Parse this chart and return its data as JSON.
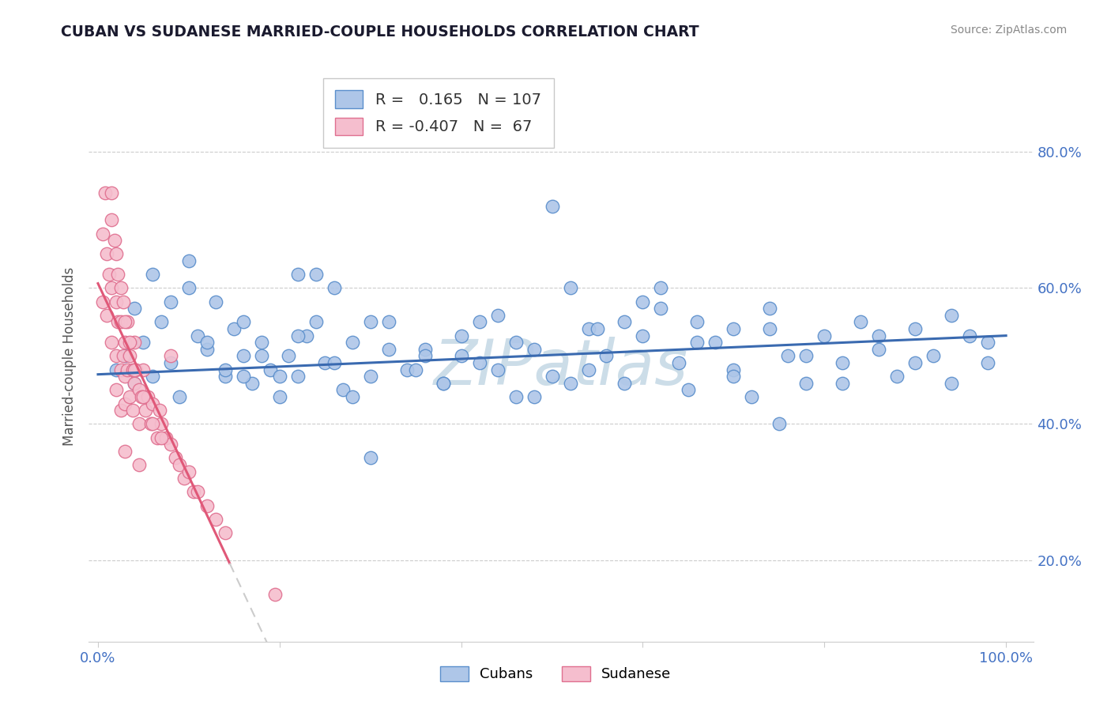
{
  "title": "CUBAN VS SUDANESE MARRIED-COUPLE HOUSEHOLDS CORRELATION CHART",
  "source": "Source: ZipAtlas.com",
  "ylabel_label": "Married-couple Households",
  "x_tick_positions": [
    0.0,
    0.2,
    0.4,
    0.6,
    0.8,
    1.0
  ],
  "x_tick_labels": [
    "0.0%",
    "",
    "",
    "",
    "",
    "100.0%"
  ],
  "y_tick_positions": [
    0.2,
    0.4,
    0.6,
    0.8
  ],
  "y_tick_labels": [
    "20.0%",
    "40.0%",
    "60.0%",
    "80.0%"
  ],
  "xlim": [
    -0.01,
    1.03
  ],
  "ylim": [
    0.08,
    0.92
  ],
  "r_cuban": 0.165,
  "n_cuban": 107,
  "r_sudanese": -0.407,
  "n_sudanese": 67,
  "cuban_color": "#aec6e8",
  "cuban_edge_color": "#5b8fcc",
  "cuban_line_color": "#3a6ab0",
  "sudanese_color": "#f5bece",
  "sudanese_edge_color": "#e07090",
  "sudanese_line_color": "#e05878",
  "sudanese_line_dash_color": "#cccccc",
  "watermark_color": "#ccdde8",
  "background_color": "#ffffff",
  "cuban_scatter_x": [
    0.02,
    0.03,
    0.04,
    0.05,
    0.06,
    0.07,
    0.08,
    0.09,
    0.1,
    0.11,
    0.12,
    0.13,
    0.14,
    0.15,
    0.16,
    0.17,
    0.18,
    0.19,
    0.2,
    0.21,
    0.22,
    0.23,
    0.24,
    0.25,
    0.26,
    0.27,
    0.28,
    0.3,
    0.32,
    0.34,
    0.36,
    0.38,
    0.4,
    0.42,
    0.44,
    0.46,
    0.48,
    0.5,
    0.52,
    0.54,
    0.56,
    0.58,
    0.6,
    0.62,
    0.64,
    0.66,
    0.68,
    0.7,
    0.72,
    0.74,
    0.76,
    0.78,
    0.8,
    0.82,
    0.84,
    0.86,
    0.88,
    0.9,
    0.92,
    0.94,
    0.96,
    0.98,
    0.04,
    0.06,
    0.08,
    0.1,
    0.12,
    0.14,
    0.16,
    0.18,
    0.2,
    0.22,
    0.24,
    0.26,
    0.28,
    0.3,
    0.32,
    0.35,
    0.38,
    0.42,
    0.46,
    0.5,
    0.54,
    0.58,
    0.62,
    0.66,
    0.7,
    0.74,
    0.78,
    0.82,
    0.86,
    0.9,
    0.94,
    0.98,
    0.44,
    0.55,
    0.65,
    0.75,
    0.48,
    0.36,
    0.6,
    0.3,
    0.22,
    0.16,
    0.7,
    0.4,
    0.52
  ],
  "cuban_scatter_y": [
    0.48,
    0.5,
    0.46,
    0.52,
    0.47,
    0.55,
    0.49,
    0.44,
    0.6,
    0.53,
    0.51,
    0.58,
    0.47,
    0.54,
    0.5,
    0.46,
    0.52,
    0.48,
    0.44,
    0.5,
    0.47,
    0.53,
    0.55,
    0.49,
    0.6,
    0.45,
    0.52,
    0.47,
    0.55,
    0.48,
    0.51,
    0.46,
    0.53,
    0.49,
    0.56,
    0.44,
    0.51,
    0.47,
    0.6,
    0.54,
    0.5,
    0.46,
    0.53,
    0.57,
    0.49,
    0.55,
    0.52,
    0.48,
    0.44,
    0.57,
    0.5,
    0.46,
    0.53,
    0.49,
    0.55,
    0.51,
    0.47,
    0.54,
    0.5,
    0.46,
    0.53,
    0.49,
    0.57,
    0.62,
    0.58,
    0.64,
    0.52,
    0.48,
    0.55,
    0.5,
    0.47,
    0.53,
    0.62,
    0.49,
    0.44,
    0.55,
    0.51,
    0.48,
    0.46,
    0.55,
    0.52,
    0.72,
    0.48,
    0.55,
    0.6,
    0.52,
    0.47,
    0.54,
    0.5,
    0.46,
    0.53,
    0.49,
    0.56,
    0.52,
    0.48,
    0.54,
    0.45,
    0.4,
    0.44,
    0.5,
    0.58,
    0.35,
    0.62,
    0.47,
    0.54,
    0.5,
    0.46
  ],
  "sudanese_scatter_x": [
    0.005,
    0.005,
    0.008,
    0.01,
    0.01,
    0.012,
    0.015,
    0.015,
    0.015,
    0.018,
    0.02,
    0.02,
    0.02,
    0.022,
    0.022,
    0.025,
    0.025,
    0.025,
    0.028,
    0.028,
    0.03,
    0.03,
    0.03,
    0.032,
    0.032,
    0.035,
    0.035,
    0.038,
    0.038,
    0.04,
    0.04,
    0.042,
    0.045,
    0.045,
    0.048,
    0.05,
    0.052,
    0.055,
    0.058,
    0.06,
    0.065,
    0.068,
    0.07,
    0.075,
    0.08,
    0.085,
    0.09,
    0.095,
    0.1,
    0.105,
    0.11,
    0.12,
    0.13,
    0.14,
    0.015,
    0.02,
    0.025,
    0.03,
    0.035,
    0.04,
    0.05,
    0.06,
    0.07,
    0.195,
    0.03,
    0.045,
    0.08
  ],
  "sudanese_scatter_y": [
    0.68,
    0.58,
    0.74,
    0.65,
    0.56,
    0.62,
    0.7,
    0.6,
    0.52,
    0.67,
    0.58,
    0.5,
    0.45,
    0.62,
    0.55,
    0.55,
    0.48,
    0.42,
    0.58,
    0.5,
    0.52,
    0.47,
    0.43,
    0.55,
    0.48,
    0.5,
    0.44,
    0.48,
    0.42,
    0.52,
    0.46,
    0.48,
    0.45,
    0.4,
    0.44,
    0.48,
    0.42,
    0.44,
    0.4,
    0.43,
    0.38,
    0.42,
    0.4,
    0.38,
    0.37,
    0.35,
    0.34,
    0.32,
    0.33,
    0.3,
    0.3,
    0.28,
    0.26,
    0.24,
    0.74,
    0.65,
    0.6,
    0.55,
    0.52,
    0.48,
    0.44,
    0.4,
    0.38,
    0.15,
    0.36,
    0.34,
    0.5
  ],
  "sudanese_line_x_start": 0.0,
  "sudanese_line_x_solid_end": 0.145,
  "sudanese_line_x_dash_end": 0.35,
  "cuban_line_x_start": 0.0,
  "cuban_line_x_end": 1.0,
  "cuban_line_y_start": 0.473,
  "cuban_line_y_end": 0.53
}
